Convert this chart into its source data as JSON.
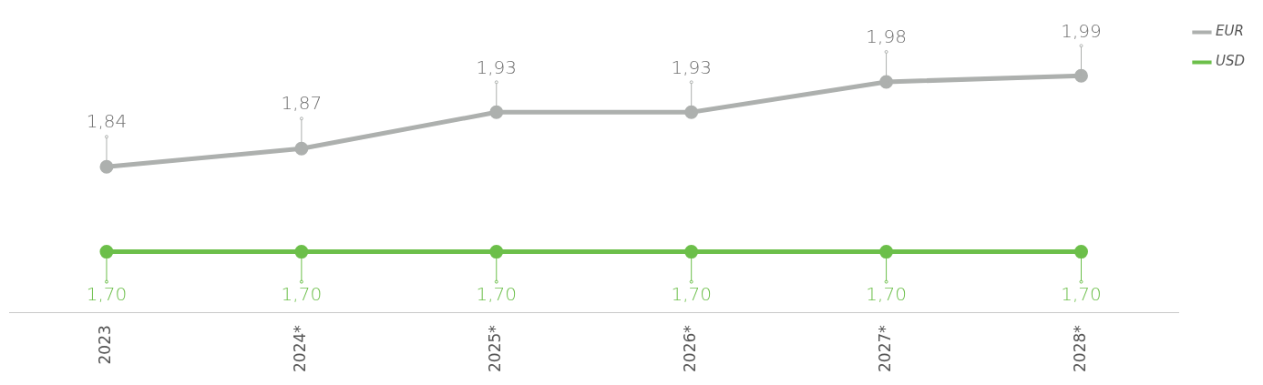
{
  "chart_data": {
    "type": "line",
    "categories": [
      "2023",
      "2024*",
      "2025*",
      "2026*",
      "2027*",
      "2028*"
    ],
    "series": [
      {
        "name": "EUR",
        "color": "#adb0ae",
        "values": [
          1.84,
          1.87,
          1.93,
          1.93,
          1.98,
          1.99
        ],
        "value_labels": [
          "1,84",
          "1,87",
          "1,93",
          "1,93",
          "1,98",
          "1,99"
        ]
      },
      {
        "name": "USD",
        "color": "#6cbf4a",
        "values": [
          1.7,
          1.7,
          1.7,
          1.7,
          1.7,
          1.7
        ],
        "value_labels": [
          "1,70",
          "1,70",
          "1,70",
          "1,70",
          "1,70",
          "1,70"
        ]
      }
    ],
    "legend": "top right",
    "marker": "circle",
    "line_style": "solid",
    "grid": false,
    "tick_labels": "x"
  }
}
